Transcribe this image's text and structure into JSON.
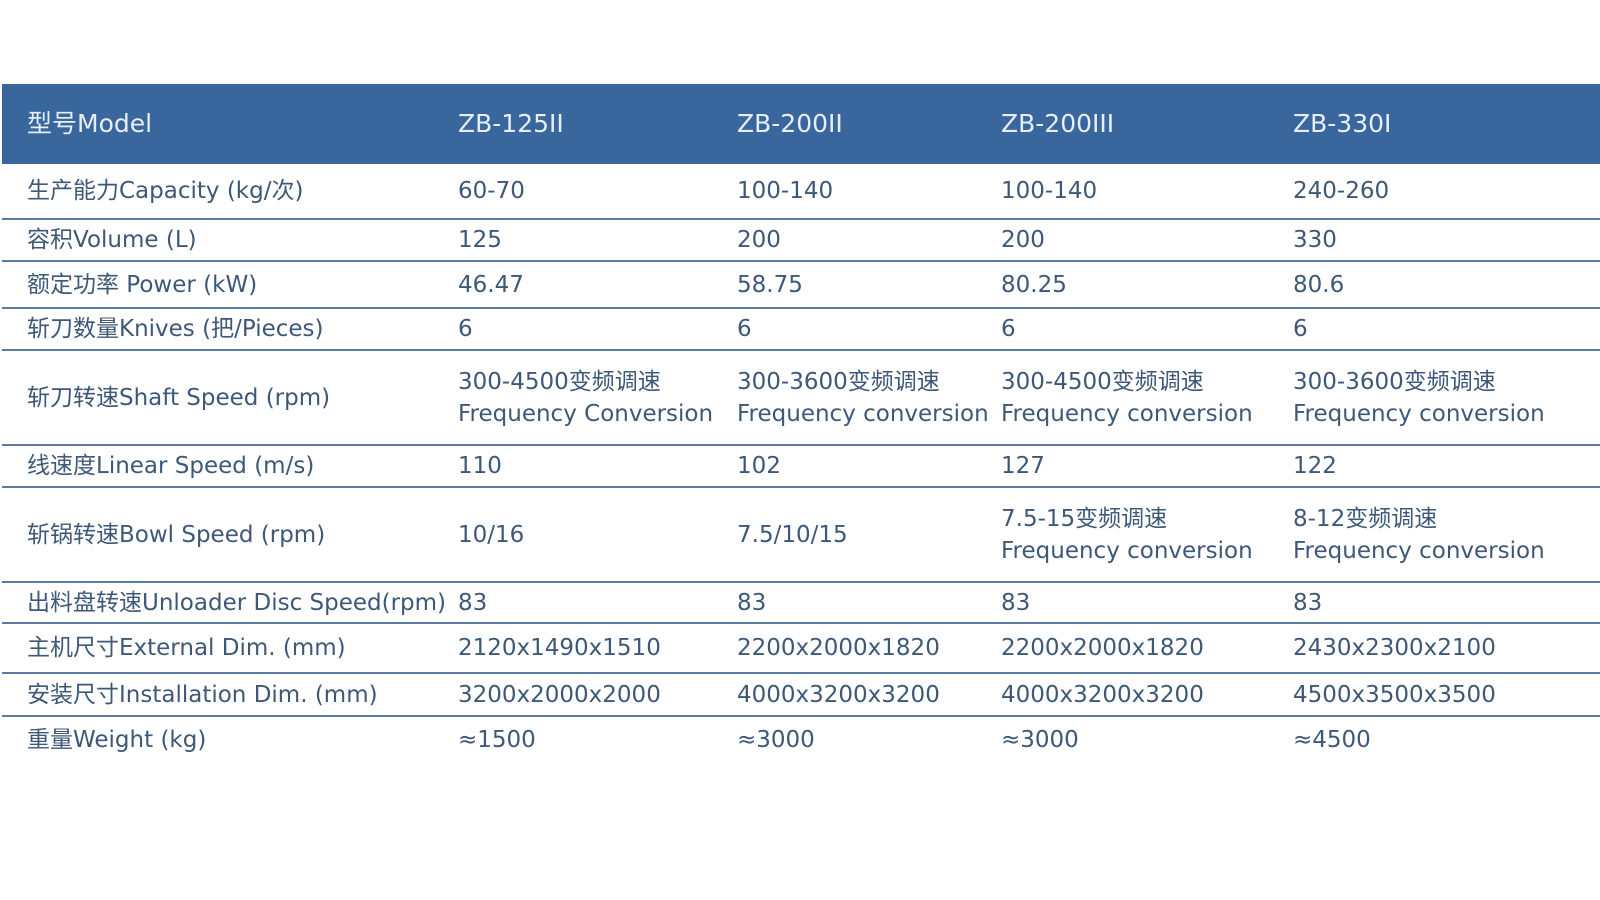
{
  "header": [
    "型号Model",
    "ZB-125II",
    "ZB-200II",
    "ZB-200III",
    "ZB-330I"
  ],
  "colors": {
    "header_bg": "#39679d",
    "text": "#3d5878",
    "rule": "#5a7ca4"
  },
  "rows": [
    {
      "cells": [
        [
          "生产能力Capacity (kg/次)"
        ],
        [
          "60-70"
        ],
        [
          "100-140"
        ],
        [
          "100-140"
        ],
        [
          "240-260"
        ]
      ]
    },
    {
      "cells": [
        [
          "容积Volume (L)"
        ],
        [
          "125"
        ],
        [
          "200"
        ],
        [
          "200"
        ],
        [
          "330"
        ]
      ]
    },
    {
      "cells": [
        [
          "额定功率 Power (kW)"
        ],
        [
          "46.47"
        ],
        [
          "58.75"
        ],
        [
          "80.25"
        ],
        [
          "80.6"
        ]
      ]
    },
    {
      "cells": [
        [
          "斩刀数量Knives (把/Pieces)"
        ],
        [
          "6"
        ],
        [
          "6"
        ],
        [
          "6"
        ],
        [
          "6"
        ]
      ]
    },
    {
      "cells": [
        [
          "斩刀转速Shaft Speed (rpm)"
        ],
        [
          "300-4500变频调速",
          "Frequency Conversion"
        ],
        [
          "300-3600变频调速",
          "Frequency conversion"
        ],
        [
          "300-4500变频调速",
          "Frequency conversion"
        ],
        [
          "300-3600变频调速",
          "Frequency conversion"
        ]
      ]
    },
    {
      "cells": [
        [
          "线速度Linear Speed (m/s)"
        ],
        [
          "110"
        ],
        [
          "102"
        ],
        [
          "127"
        ],
        [
          "122"
        ]
      ]
    },
    {
      "cells": [
        [
          "斩锅转速Bowl Speed (rpm)"
        ],
        [
          "10/16"
        ],
        [
          "7.5/10/15"
        ],
        [
          "7.5-15变频调速",
          "Frequency conversion"
        ],
        [
          "8-12变频调速",
          "Frequency conversion"
        ]
      ]
    },
    {
      "cells": [
        [
          "出料盘转速Unloader Disc Speed(rpm)"
        ],
        [
          "83"
        ],
        [
          "83"
        ],
        [
          "83"
        ],
        [
          "83"
        ]
      ]
    },
    {
      "cells": [
        [
          "主机尺寸External Dim. (mm)"
        ],
        [
          "2120x1490x1510"
        ],
        [
          "2200x2000x1820"
        ],
        [
          "2200x2000x1820"
        ],
        [
          "2430x2300x2100"
        ]
      ]
    },
    {
      "cells": [
        [
          "安装尺寸Installation Dim. (mm)"
        ],
        [
          "3200x2000x2000"
        ],
        [
          "4000x3200x3200"
        ],
        [
          "4000x3200x3200"
        ],
        [
          "4500x3500x3500"
        ]
      ]
    },
    {
      "cells": [
        [
          "重量Weight (kg)"
        ],
        [
          "≈1500"
        ],
        [
          "≈3000"
        ],
        [
          "≈3000"
        ],
        [
          "≈4500"
        ]
      ]
    }
  ]
}
